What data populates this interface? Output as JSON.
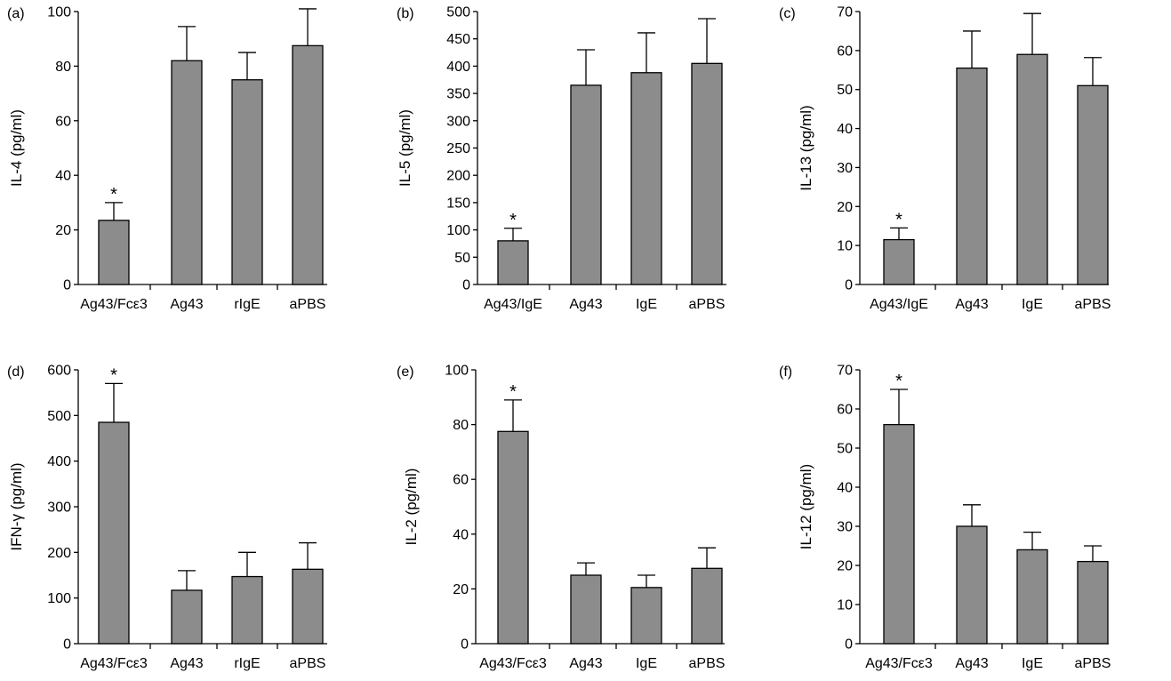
{
  "colors": {
    "bar_fill": "#8c8c8c",
    "bar_stroke": "#000000",
    "axis": "#000000"
  },
  "chart_data": [
    {
      "type": "bar",
      "panel": "(a)",
      "ylabel": "IL-4 (pg/ml)",
      "ylim": [
        0,
        100
      ],
      "yticks": [
        0,
        20,
        40,
        60,
        80,
        100
      ],
      "categories": [
        "Ag43/Fcε3",
        "Ag43",
        "rIgE",
        "aPBS"
      ],
      "values": [
        23.5,
        82,
        75,
        87.5
      ],
      "errors": [
        6.5,
        12.5,
        10,
        13.5
      ],
      "significance": [
        "*",
        "",
        "",
        ""
      ]
    },
    {
      "type": "bar",
      "panel": "(b)",
      "ylabel": "IL-5 (pg/ml)",
      "ylim": [
        0,
        500
      ],
      "yticks": [
        0,
        50,
        100,
        150,
        200,
        250,
        300,
        350,
        400,
        450,
        500
      ],
      "categories": [
        "Ag43/IgE",
        "Ag43",
        "IgE",
        "aPBS"
      ],
      "values": [
        80,
        365,
        388,
        405
      ],
      "errors": [
        23,
        65,
        73,
        82
      ],
      "significance": [
        "*",
        "",
        "",
        ""
      ]
    },
    {
      "type": "bar",
      "panel": "(c)",
      "ylabel": "IL-13 (pg/ml)",
      "ylim": [
        0,
        70
      ],
      "yticks": [
        0,
        10,
        20,
        30,
        40,
        50,
        60,
        70
      ],
      "categories": [
        "Ag43/IgE",
        "Ag43",
        "IgE",
        "aPBS"
      ],
      "values": [
        11.5,
        55.5,
        59,
        51
      ],
      "errors": [
        3,
        9.5,
        10.5,
        7.2
      ],
      "significance": [
        "*",
        "",
        "",
        ""
      ]
    },
    {
      "type": "bar",
      "panel": "(d)",
      "ylabel": "IFN-γ (pg/ml)",
      "ylim": [
        0,
        600
      ],
      "yticks": [
        0,
        100,
        200,
        300,
        400,
        500,
        600
      ],
      "categories": [
        "Ag43/Fcε3",
        "Ag43",
        "rIgE",
        "aPBS"
      ],
      "values": [
        485,
        117,
        147,
        163
      ],
      "errors": [
        85,
        43,
        53,
        58
      ],
      "significance": [
        "*",
        "",
        "",
        ""
      ]
    },
    {
      "type": "bar",
      "panel": "(e)",
      "ylabel": "IL-2 (pg/ml)",
      "ylim": [
        0,
        100
      ],
      "yticks": [
        0,
        20,
        40,
        60,
        80,
        100
      ],
      "categories": [
        "Ag43/Fcε3",
        "Ag43",
        "IgE",
        "aPBS"
      ],
      "values": [
        77.5,
        25,
        20.5,
        27.5
      ],
      "errors": [
        11.5,
        4.5,
        4.5,
        7.5
      ],
      "significance": [
        "*",
        "",
        "",
        ""
      ]
    },
    {
      "type": "bar",
      "panel": "(f)",
      "ylabel": "IL-12 (pg/ml)",
      "ylim": [
        0,
        70
      ],
      "yticks": [
        0,
        10,
        20,
        30,
        40,
        50,
        60,
        70
      ],
      "categories": [
        "Ag43/Fcε3",
        "Ag43",
        "IgE",
        "aPBS"
      ],
      "values": [
        56,
        30,
        24,
        21
      ],
      "errors": [
        9,
        5.5,
        4.5,
        4
      ],
      "significance": [
        "*",
        "",
        "",
        ""
      ]
    }
  ]
}
